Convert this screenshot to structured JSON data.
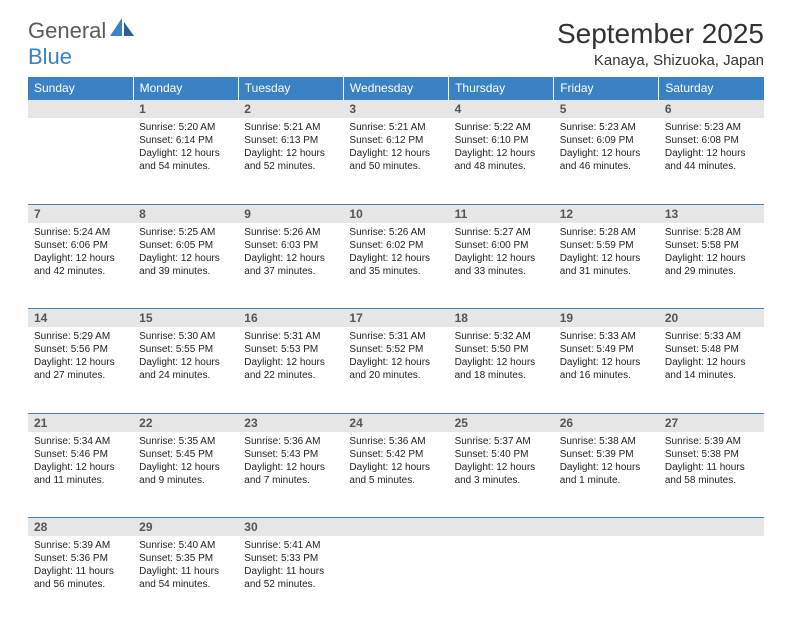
{
  "brand": {
    "word1": "General",
    "word2": "Blue"
  },
  "header": {
    "month_title": "September 2025",
    "location": "Kanaya, Shizuoka, Japan"
  },
  "colors": {
    "header_bg": "#3b82c4",
    "header_text": "#ffffff",
    "daynum_bg": "#e6e6e6",
    "rule": "#3b82c4",
    "text": "#222222",
    "background": "#ffffff"
  },
  "days_of_week": [
    "Sunday",
    "Monday",
    "Tuesday",
    "Wednesday",
    "Thursday",
    "Friday",
    "Saturday"
  ],
  "weeks": [
    [
      {
        "num": "",
        "sunrise": "",
        "sunset": "",
        "daylight": ""
      },
      {
        "num": "1",
        "sunrise": "Sunrise: 5:20 AM",
        "sunset": "Sunset: 6:14 PM",
        "daylight": "Daylight: 12 hours and 54 minutes."
      },
      {
        "num": "2",
        "sunrise": "Sunrise: 5:21 AM",
        "sunset": "Sunset: 6:13 PM",
        "daylight": "Daylight: 12 hours and 52 minutes."
      },
      {
        "num": "3",
        "sunrise": "Sunrise: 5:21 AM",
        "sunset": "Sunset: 6:12 PM",
        "daylight": "Daylight: 12 hours and 50 minutes."
      },
      {
        "num": "4",
        "sunrise": "Sunrise: 5:22 AM",
        "sunset": "Sunset: 6:10 PM",
        "daylight": "Daylight: 12 hours and 48 minutes."
      },
      {
        "num": "5",
        "sunrise": "Sunrise: 5:23 AM",
        "sunset": "Sunset: 6:09 PM",
        "daylight": "Daylight: 12 hours and 46 minutes."
      },
      {
        "num": "6",
        "sunrise": "Sunrise: 5:23 AM",
        "sunset": "Sunset: 6:08 PM",
        "daylight": "Daylight: 12 hours and 44 minutes."
      }
    ],
    [
      {
        "num": "7",
        "sunrise": "Sunrise: 5:24 AM",
        "sunset": "Sunset: 6:06 PM",
        "daylight": "Daylight: 12 hours and 42 minutes."
      },
      {
        "num": "8",
        "sunrise": "Sunrise: 5:25 AM",
        "sunset": "Sunset: 6:05 PM",
        "daylight": "Daylight: 12 hours and 39 minutes."
      },
      {
        "num": "9",
        "sunrise": "Sunrise: 5:26 AM",
        "sunset": "Sunset: 6:03 PM",
        "daylight": "Daylight: 12 hours and 37 minutes."
      },
      {
        "num": "10",
        "sunrise": "Sunrise: 5:26 AM",
        "sunset": "Sunset: 6:02 PM",
        "daylight": "Daylight: 12 hours and 35 minutes."
      },
      {
        "num": "11",
        "sunrise": "Sunrise: 5:27 AM",
        "sunset": "Sunset: 6:00 PM",
        "daylight": "Daylight: 12 hours and 33 minutes."
      },
      {
        "num": "12",
        "sunrise": "Sunrise: 5:28 AM",
        "sunset": "Sunset: 5:59 PM",
        "daylight": "Daylight: 12 hours and 31 minutes."
      },
      {
        "num": "13",
        "sunrise": "Sunrise: 5:28 AM",
        "sunset": "Sunset: 5:58 PM",
        "daylight": "Daylight: 12 hours and 29 minutes."
      }
    ],
    [
      {
        "num": "14",
        "sunrise": "Sunrise: 5:29 AM",
        "sunset": "Sunset: 5:56 PM",
        "daylight": "Daylight: 12 hours and 27 minutes."
      },
      {
        "num": "15",
        "sunrise": "Sunrise: 5:30 AM",
        "sunset": "Sunset: 5:55 PM",
        "daylight": "Daylight: 12 hours and 24 minutes."
      },
      {
        "num": "16",
        "sunrise": "Sunrise: 5:31 AM",
        "sunset": "Sunset: 5:53 PM",
        "daylight": "Daylight: 12 hours and 22 minutes."
      },
      {
        "num": "17",
        "sunrise": "Sunrise: 5:31 AM",
        "sunset": "Sunset: 5:52 PM",
        "daylight": "Daylight: 12 hours and 20 minutes."
      },
      {
        "num": "18",
        "sunrise": "Sunrise: 5:32 AM",
        "sunset": "Sunset: 5:50 PM",
        "daylight": "Daylight: 12 hours and 18 minutes."
      },
      {
        "num": "19",
        "sunrise": "Sunrise: 5:33 AM",
        "sunset": "Sunset: 5:49 PM",
        "daylight": "Daylight: 12 hours and 16 minutes."
      },
      {
        "num": "20",
        "sunrise": "Sunrise: 5:33 AM",
        "sunset": "Sunset: 5:48 PM",
        "daylight": "Daylight: 12 hours and 14 minutes."
      }
    ],
    [
      {
        "num": "21",
        "sunrise": "Sunrise: 5:34 AM",
        "sunset": "Sunset: 5:46 PM",
        "daylight": "Daylight: 12 hours and 11 minutes."
      },
      {
        "num": "22",
        "sunrise": "Sunrise: 5:35 AM",
        "sunset": "Sunset: 5:45 PM",
        "daylight": "Daylight: 12 hours and 9 minutes."
      },
      {
        "num": "23",
        "sunrise": "Sunrise: 5:36 AM",
        "sunset": "Sunset: 5:43 PM",
        "daylight": "Daylight: 12 hours and 7 minutes."
      },
      {
        "num": "24",
        "sunrise": "Sunrise: 5:36 AM",
        "sunset": "Sunset: 5:42 PM",
        "daylight": "Daylight: 12 hours and 5 minutes."
      },
      {
        "num": "25",
        "sunrise": "Sunrise: 5:37 AM",
        "sunset": "Sunset: 5:40 PM",
        "daylight": "Daylight: 12 hours and 3 minutes."
      },
      {
        "num": "26",
        "sunrise": "Sunrise: 5:38 AM",
        "sunset": "Sunset: 5:39 PM",
        "daylight": "Daylight: 12 hours and 1 minute."
      },
      {
        "num": "27",
        "sunrise": "Sunrise: 5:39 AM",
        "sunset": "Sunset: 5:38 PM",
        "daylight": "Daylight: 11 hours and 58 minutes."
      }
    ],
    [
      {
        "num": "28",
        "sunrise": "Sunrise: 5:39 AM",
        "sunset": "Sunset: 5:36 PM",
        "daylight": "Daylight: 11 hours and 56 minutes."
      },
      {
        "num": "29",
        "sunrise": "Sunrise: 5:40 AM",
        "sunset": "Sunset: 5:35 PM",
        "daylight": "Daylight: 11 hours and 54 minutes."
      },
      {
        "num": "30",
        "sunrise": "Sunrise: 5:41 AM",
        "sunset": "Sunset: 5:33 PM",
        "daylight": "Daylight: 11 hours and 52 minutes."
      },
      {
        "num": "",
        "sunrise": "",
        "sunset": "",
        "daylight": ""
      },
      {
        "num": "",
        "sunrise": "",
        "sunset": "",
        "daylight": ""
      },
      {
        "num": "",
        "sunrise": "",
        "sunset": "",
        "daylight": ""
      },
      {
        "num": "",
        "sunrise": "",
        "sunset": "",
        "daylight": ""
      }
    ]
  ]
}
